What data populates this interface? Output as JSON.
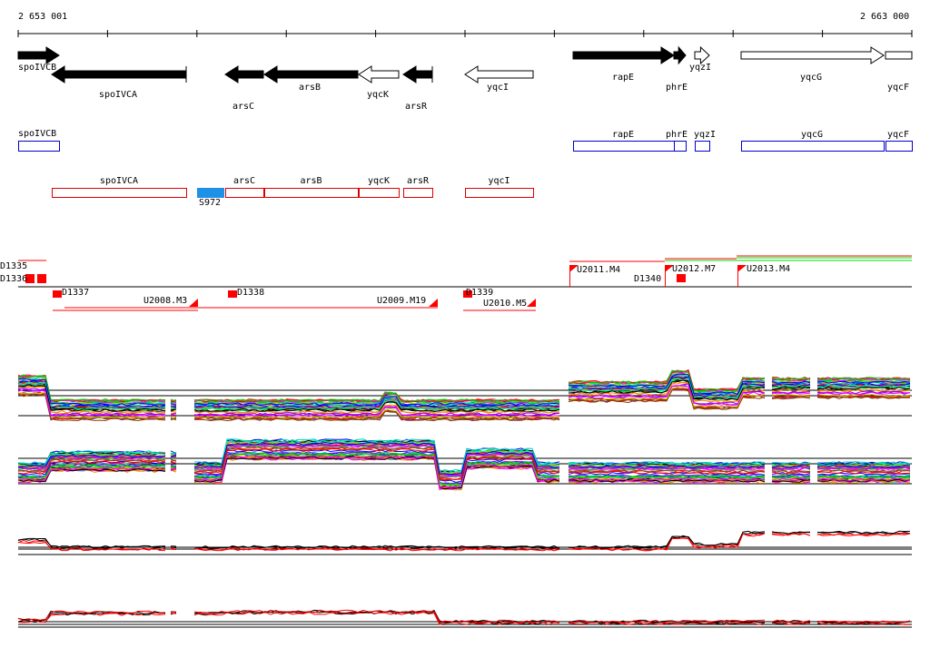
{
  "ruler": {
    "start": "2 653 001",
    "end": "2 663 000"
  },
  "genes": [
    "spoIVCB",
    "spoIVCA",
    "arsC",
    "arsB",
    "yqcK",
    "arsR",
    "yqcI",
    "rapE",
    "phrE",
    "yqzI",
    "yqcG",
    "yqcF"
  ],
  "blue_boxes": [
    "spoIVCB",
    "rapE",
    "phrE",
    "yqzI",
    "yqcG",
    "yqcF"
  ],
  "red_boxes": [
    "spoIVCA",
    "arsC",
    "arsB",
    "yqcK",
    "arsR",
    "yqcI"
  ],
  "site": {
    "label": "S972",
    "color": "#1e90e6"
  },
  "features": [
    "D1335",
    "D1336",
    "D1337",
    "U2008.M3",
    "D1338",
    "U2009.M19",
    "D1339",
    "U2010.M5",
    "U2011.M4",
    "D1340",
    "U2012.M7",
    "U2013.M4"
  ],
  "colors": {
    "feature": "#ff0000",
    "green": "#00dd00",
    "site": "#1e90e6"
  }
}
